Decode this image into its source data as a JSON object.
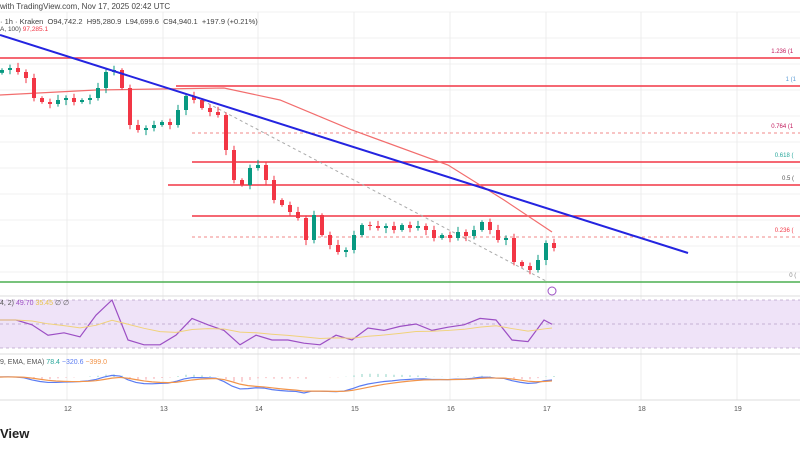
{
  "header": {
    "source": "with TradingView.com, Nov 17, 2025 02:42 UTC",
    "symbol": "· 1h · Kraken",
    "open": "O94,742.2",
    "high": "H95,280.9",
    "low": "L94,699.6",
    "close": "C94,940.1",
    "change": "+197.9 (+0.21%)",
    "sma_label": "A, 100)",
    "sma_value": "97,285.1"
  },
  "rsi": {
    "label": "4, 2)",
    "value": "49.70",
    "ma_value": "35.45",
    "extra": "∅ ∅"
  },
  "macd": {
    "label": "9, EMA, EMA)",
    "hist": "78.4",
    "macd": "−320.6",
    "signal": "−399.0"
  },
  "logo": "View",
  "colors": {
    "up": "#089981",
    "down": "#f23645",
    "trend": "#2424e0",
    "sma": "#f26d6d",
    "level": "#f23645",
    "zero": "#4caf50",
    "rsi": "#9c4fc4",
    "rsi_bg": "#efe3f8",
    "macd": "#5b7cf2",
    "signal": "#f2944a"
  },
  "chart_data": {
    "type": "candlestick",
    "ylim": [
      91300,
      112300
    ],
    "x_ticks": [
      "12",
      "13",
      "14",
      "15",
      "16",
      "17",
      "18",
      "19"
    ],
    "closes": [
      107400,
      107540,
      107260,
      106840,
      105440,
      105160,
      105020,
      105300,
      105440,
      105160,
      105300,
      105440,
      106140,
      107260,
      107400,
      106140,
      103550,
      103200,
      103340,
      103550,
      103760,
      103550,
      104600,
      105580,
      105300,
      104740,
      104460,
      104250,
      101800,
      99700,
      99350,
      100540,
      100750,
      99700,
      98300,
      97950,
      97460,
      97040,
      95500,
      97250,
      95850,
      95150,
      94660,
      94800,
      95850,
      96550,
      96480,
      96340,
      96480,
      96200,
      96550,
      96340,
      96480,
      96200,
      95640,
      95850,
      95640,
      96060,
      95780,
      96200,
      96760,
      96200,
      95500,
      95640,
      93960,
      93680,
      93400,
      94100,
      95290,
      94940
    ],
    "first_open": 107200,
    "sma_100": [
      [
        0,
        105650
      ],
      [
        12,
        106000
      ],
      [
        28,
        106140
      ],
      [
        35,
        105300
      ],
      [
        44,
        103200
      ],
      [
        56,
        100750
      ],
      [
        63,
        98300
      ],
      [
        69,
        96060
      ]
    ],
    "trend_line": [
      [
        0,
        109850
      ],
      [
        86,
        94590
      ]
    ],
    "fib_diagonal": [
      [
        24,
        105650
      ],
      [
        68.5,
        92560
      ]
    ],
    "horizontal_levels": [
      {
        "price": 108240,
        "from": 0,
        "style": "solid",
        "color": "#f23645"
      },
      {
        "price": 106280,
        "from": 22,
        "style": "solid",
        "color": "#f23645"
      },
      {
        "price": 100960,
        "from": 24,
        "style": "solid",
        "color": "#f23645"
      },
      {
        "price": 99350,
        "from": 21,
        "style": "solid",
        "color": "#f23645"
      },
      {
        "price": 97180,
        "from": 24,
        "style": "solid",
        "color": "#f23645"
      },
      {
        "price": 102990,
        "from": 24,
        "style": "dashed",
        "color": "#f28a8a"
      },
      {
        "price": 95710,
        "from": 24,
        "style": "dashed",
        "color": "#f28a8a"
      },
      {
        "price": 92560,
        "from": 0,
        "style": "solid",
        "color": "#4caf50"
      }
    ],
    "fib_labels": [
      {
        "text": "1.236 (1",
        "price": 108240,
        "color": "#c2185b"
      },
      {
        "text": "1 (1",
        "price": 106280,
        "color": "#5b9bd5"
      },
      {
        "text": "0.764 (1",
        "price": 102990,
        "color": "#c2185b"
      },
      {
        "text": "0.618 (",
        "price": 100960,
        "color": "#26a69a"
      },
      {
        "text": "0.5 (",
        "price": 99350,
        "color": "#555555"
      },
      {
        "text": "0.236 (",
        "price": 95710,
        "color": "#f23645"
      },
      {
        "text": "0 (",
        "price": 92560,
        "color": "#888888"
      }
    ],
    "rsi_values": [
      55,
      55,
      49,
      36,
      39,
      34,
      61,
      80,
      30,
      24,
      24,
      36,
      57,
      49,
      42,
      24,
      36,
      30,
      30,
      26,
      24,
      36,
      30,
      45,
      42,
      47,
      50,
      42,
      46,
      49,
      57,
      55,
      30,
      28,
      55,
      49.7
    ]
  }
}
